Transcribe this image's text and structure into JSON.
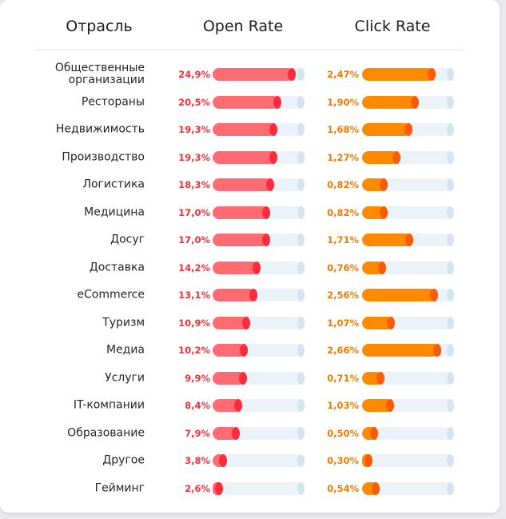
{
  "header": {
    "industry": "Отрасль",
    "open_rate": "Open Rate",
    "click_rate": "Click Rate"
  },
  "colors": {
    "open_bar": "#ff6b72",
    "open_cap": "#ff2a3a",
    "open_text": "#f4313d",
    "click_bar": "#ff8a00",
    "click_cap": "#ff5a00",
    "click_text": "#f27a00",
    "track": "#ebf3f8"
  },
  "chart_data": {
    "type": "bar",
    "orientation": "horizontal",
    "categories": [
      "Общественные организации",
      "Рестораны",
      "Недвижимость",
      "Производство",
      "Логистика",
      "Медицина",
      "Досуг",
      "Доставка",
      "eCommerce",
      "Туризм",
      "Медиа",
      "Услуги",
      "IT-компании",
      "Образование",
      "Другое",
      "Гейминг"
    ],
    "category_lines": [
      [
        "Общественные",
        "организации"
      ],
      [
        "Рестораны"
      ],
      [
        "Недвижимость"
      ],
      [
        "Производство"
      ],
      [
        "Логистика"
      ],
      [
        "Медицина"
      ],
      [
        "Досуг"
      ],
      [
        "Доставка"
      ],
      [
        "eCommerce"
      ],
      [
        "Туризм"
      ],
      [
        "Медиа"
      ],
      [
        "Услуги"
      ],
      [
        "IT-компании"
      ],
      [
        "Образование"
      ],
      [
        "Другое"
      ],
      [
        "Гейминг"
      ]
    ],
    "series": [
      {
        "name": "Open Rate",
        "values": [
          24.9,
          20.5,
          19.3,
          19.3,
          18.3,
          17.0,
          17.0,
          14.2,
          13.1,
          10.9,
          10.2,
          9.9,
          8.4,
          7.9,
          3.8,
          2.6
        ],
        "labels": [
          "24,9%",
          "20,5%",
          "19,3%",
          "19,3%",
          "18,3%",
          "17,0%",
          "17,0%",
          "14,2%",
          "13,1%",
          "10,9%",
          "10,2%",
          "9,9%",
          "8,4%",
          "7,9%",
          "3,8%",
          "2,6%"
        ],
        "max": 28
      },
      {
        "name": "Click Rate",
        "values": [
          2.47,
          1.9,
          1.68,
          1.27,
          0.82,
          0.82,
          1.71,
          0.76,
          2.56,
          1.07,
          2.66,
          0.71,
          1.03,
          0.5,
          0.3,
          0.54
        ],
        "labels": [
          "2,47%",
          "1,90%",
          "1,68%",
          "1,27%",
          "0,82%",
          "0,82%",
          "1,71%",
          "0,76%",
          "2,56%",
          "1,07%",
          "2,66%",
          "0,71%",
          "1,03%",
          "0,50%",
          "0,30%",
          "0,54%"
        ],
        "max": 3.15
      }
    ]
  }
}
